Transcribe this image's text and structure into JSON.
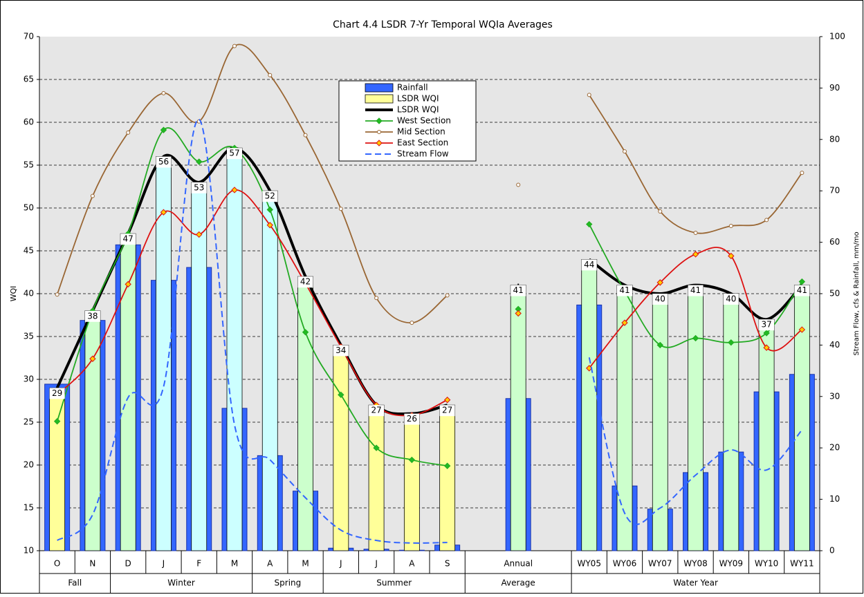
{
  "chart_data": {
    "type": "combo",
    "title": "Chart 4.4 LSDR 7-Yr Temporal WQIa Averages",
    "y_label": "WQI",
    "y2_label": "Stream Flow, cfs & Rainfall, mm/mo",
    "categories": [
      "O",
      "N",
      "D",
      "J",
      "F",
      "M",
      "A",
      "M",
      "J",
      "J",
      "A",
      "S",
      null,
      "Annual",
      null,
      "WY05",
      "WY06",
      "WY07",
      "WY08",
      "WY09",
      "WY10",
      "WY11"
    ],
    "group_labels": [
      "Fall",
      "Winter",
      "Spring",
      "Summer",
      "Average",
      "Water Year"
    ],
    "group_sizes": [
      2,
      4,
      2,
      4,
      3,
      7
    ],
    "ylim": [
      10,
      70
    ],
    "yticks": [
      10,
      15,
      20,
      25,
      30,
      35,
      40,
      45,
      50,
      55,
      60,
      65,
      70
    ],
    "y2lim": [
      0,
      100
    ],
    "y2ticks": [
      0,
      10,
      20,
      30,
      40,
      50,
      60,
      70,
      80,
      90,
      100
    ],
    "grid": true,
    "legend": "top-center",
    "series": [
      {
        "name": "Rainfall",
        "type": "bar",
        "axis": "y2",
        "color": "#3366ff",
        "values": [
          32.4,
          44.8,
          59.5,
          52.6,
          55.1,
          27.7,
          18.5,
          11.6,
          0.5,
          0.3,
          0.1,
          1.1,
          null,
          29.6,
          null,
          47.8,
          12.6,
          8.1,
          15.2,
          19.2,
          30.9,
          34.3
        ]
      },
      {
        "name": "LSDR WQI",
        "type": "bar",
        "axis": "y",
        "color": "#ffff99",
        "data_labels": true,
        "colors": [
          "#ffff99",
          "#ccffcc",
          "#ccffcc",
          "#ccffff",
          "#ccffff",
          "#ccffff",
          "#ccffff",
          "#ccffcc",
          "#ffff99",
          "#ffff99",
          "#ffff99",
          "#ffff99",
          null,
          "#ccffcc",
          null,
          "#ccffcc",
          "#ccffcc",
          "#ccffcc",
          "#ccffcc",
          "#ccffcc",
          "#ccffcc",
          "#ccffcc"
        ],
        "values": [
          29,
          38,
          47,
          56,
          53,
          57,
          52,
          42,
          34,
          27,
          26,
          27,
          null,
          41,
          null,
          44,
          41,
          40,
          41,
          40,
          37,
          41
        ]
      },
      {
        "name": "LSDR WQI",
        "type": "line",
        "axis": "y",
        "color": "#000000",
        "line_style": "thick",
        "values": [
          29,
          38,
          47,
          56,
          53,
          57,
          52,
          42,
          34,
          27,
          26,
          27,
          null,
          41,
          null,
          44,
          41,
          40,
          41,
          40,
          37,
          41
        ]
      },
      {
        "name": "West Section",
        "type": "line",
        "axis": "y",
        "color": "#22aa22",
        "marker": "diamond",
        "marker_color": "#22bb22",
        "line_style": "solid",
        "values": [
          25.1,
          38,
          47,
          59.1,
          55.4,
          57,
          49.8,
          35.5,
          28.2,
          22,
          20.6,
          19.9,
          null,
          38.2,
          null,
          48.1,
          40.3,
          34,
          34.8,
          34.3,
          35.4,
          41.4
        ]
      },
      {
        "name": "Mid Section",
        "type": "line",
        "axis": "y",
        "color": "#996633",
        "marker": "circle",
        "marker_color": "#ffffff",
        "line_style": "solid",
        "values": [
          39.9,
          51.4,
          58.8,
          63.4,
          60.1,
          68.9,
          65.5,
          58.5,
          49.9,
          39.5,
          36.6,
          39.8,
          null,
          52.7,
          null,
          63.2,
          56.6,
          49.6,
          47.1,
          47.9,
          48.6,
          54.1
        ]
      },
      {
        "name": "East Section",
        "type": "line",
        "axis": "y",
        "color": "#dd1111",
        "marker": "diamond",
        "marker_color": "#ffcc00",
        "line_style": "solid",
        "values": [
          28.2,
          32.4,
          41.1,
          49.5,
          46.9,
          52.1,
          48,
          41.2,
          33.8,
          27,
          25.8,
          27.6,
          null,
          37.7,
          null,
          31.3,
          36.6,
          41.3,
          44.6,
          44.4,
          33.7,
          35.8
        ]
      },
      {
        "name": "Stream Flow",
        "type": "line",
        "axis": "y2",
        "color": "#3366ff",
        "line_style": "dashed",
        "values": [
          2.0,
          7.0,
          29.8,
          31.9,
          83.9,
          24.5,
          17.7,
          10.3,
          4.0,
          2.0,
          1.5,
          1.6,
          null,
          null,
          null,
          37.6,
          7.3,
          8.3,
          14.7,
          19.6,
          15.7,
          23.5
        ]
      }
    ]
  }
}
